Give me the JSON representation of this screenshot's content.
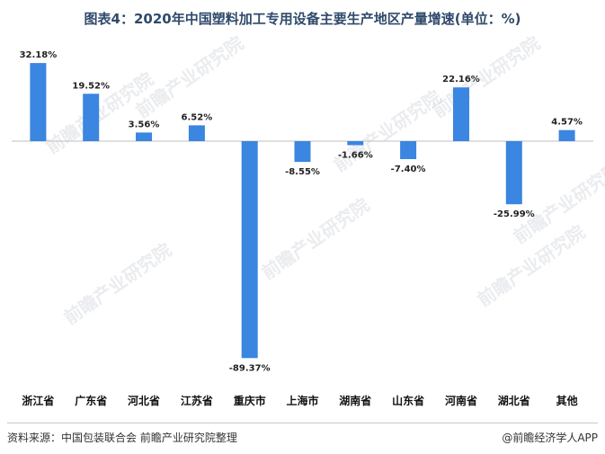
{
  "title": "图表4：2020年中国塑料加工专用设备主要生产地区产量增速(单位：%)",
  "watermark": "前瞻产业研究院",
  "source": "资料来源：中国包装联合会 前瞻产业研究院整理",
  "credit": "@前瞻经济学人APP",
  "colors": {
    "bar": "#3a86e0"
  },
  "chart_data": {
    "type": "bar",
    "title": "图表4：2020年中国塑料加工专用设备主要生产地区产量增速(单位：%)",
    "xlabel": "",
    "ylabel": "",
    "categories": [
      "浙江省",
      "广东省",
      "河北省",
      "江苏省",
      "重庆市",
      "上海市",
      "湖南省",
      "山东省",
      "河南省",
      "湖北省",
      "其他"
    ],
    "values": [
      32.18,
      19.52,
      3.56,
      6.52,
      -89.37,
      -8.55,
      -1.66,
      -7.4,
      22.16,
      -25.99,
      4.57
    ],
    "labels": [
      "32.18%",
      "19.52%",
      "3.56%",
      "6.52%",
      "-89.37%",
      "-8.55%",
      "-1.66%",
      "-7.40%",
      "22.16%",
      "-25.99%",
      "4.57%"
    ],
    "ylim": [
      -90,
      33
    ],
    "grid": false,
    "legend": "none"
  }
}
